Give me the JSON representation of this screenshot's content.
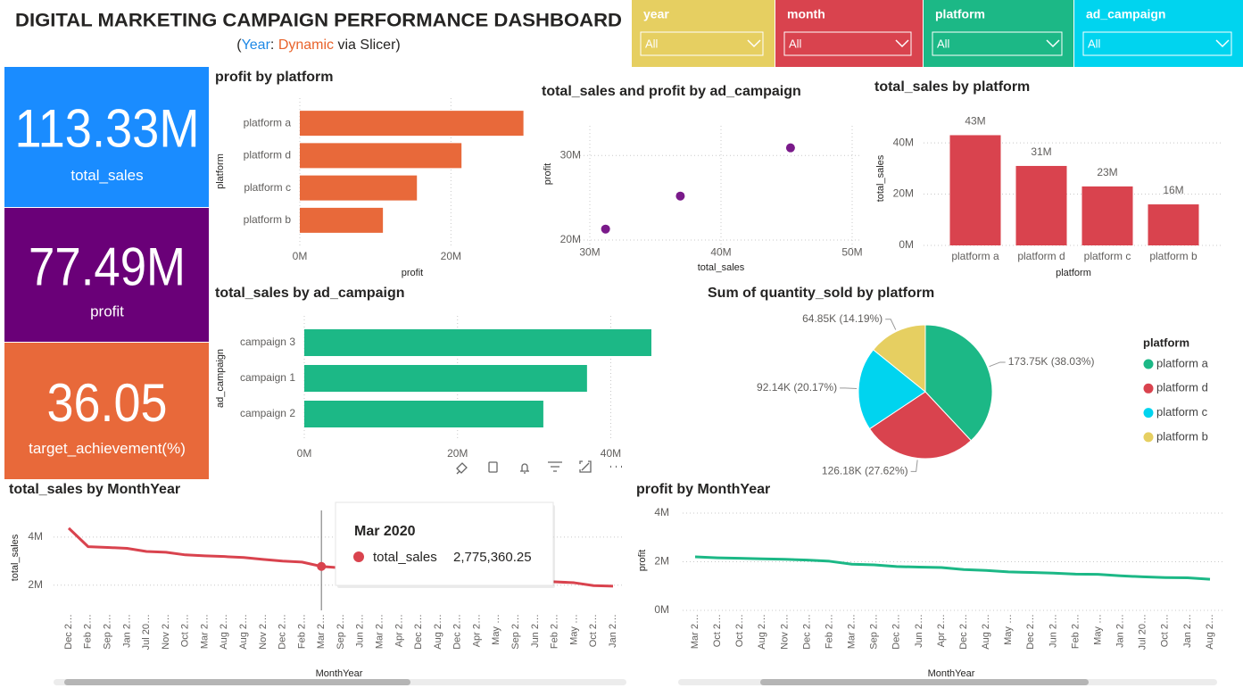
{
  "header": {
    "title": "DIGITAL MARKETING CAMPAIGN PERFORMANCE DASHBOARD",
    "subtitle_parts": [
      "(",
      "Year",
      ":",
      "Dynamic",
      "via Slicer)"
    ]
  },
  "slicers": [
    {
      "label": "year",
      "value": "All",
      "color": "#e6cf61"
    },
    {
      "label": "month",
      "value": "All",
      "color": "#d9434e"
    },
    {
      "label": "platform",
      "value": "All",
      "color": "#1cb886"
    },
    {
      "label": "ad_campaign",
      "value": "All",
      "color": "#00d4ef"
    }
  ],
  "kpis": [
    {
      "value": "113.33M",
      "label": "total_sales",
      "color": "#1a8cff"
    },
    {
      "value": "77.49M",
      "label": "profit",
      "color": "#6a0078"
    },
    {
      "value": "36.05",
      "label": "target_achievement(%)",
      "color": "#e8693a"
    }
  ],
  "chart_data": [
    {
      "type": "bar",
      "orientation": "horizontal",
      "title": "profit by platform",
      "x_label": "profit",
      "y_label": "platform",
      "categories": [
        "platform a",
        "platform d",
        "platform c",
        "platform b"
      ],
      "values": [
        29.6,
        21.4,
        15.5,
        11.0
      ],
      "color": "#e8693a",
      "xlim": [
        0,
        30
      ],
      "xticks": [
        {
          "value": 0,
          "label": "0M"
        },
        {
          "value": 20,
          "label": "20M"
        }
      ],
      "grid": true
    },
    {
      "type": "scatter",
      "title": "total_sales and profit by ad_campaign",
      "x_label": "total_sales",
      "y_label": "profit",
      "x": [
        31.2,
        36.9,
        45.3
      ],
      "values": [
        21.3,
        25.2,
        30.9
      ],
      "color": "#7a1a8a",
      "xlim": [
        30,
        50
      ],
      "xticks": [
        {
          "value": 30,
          "label": "30M"
        },
        {
          "value": 40,
          "label": "40M"
        },
        {
          "value": 50,
          "label": "50M"
        }
      ],
      "ylim": [
        19,
        33.5
      ],
      "yticks": [
        {
          "value": 20,
          "label": "20M"
        },
        {
          "value": 30,
          "label": "30M"
        }
      ],
      "grid": true
    },
    {
      "type": "bar",
      "orientation": "vertical",
      "title": "total_sales by platform",
      "x_label": "platform",
      "y_label": "total_sales",
      "categories": [
        "platform a",
        "platform d",
        "platform c",
        "platform b"
      ],
      "values": [
        43,
        31,
        23,
        16
      ],
      "value_labels": [
        "43M",
        "31M",
        "23M",
        "16M"
      ],
      "color": "#d9434e",
      "ylim": [
        0,
        47
      ],
      "yticks": [
        {
          "value": 0,
          "label": "0M"
        },
        {
          "value": 20,
          "label": "20M"
        },
        {
          "value": 40,
          "label": "40M"
        }
      ],
      "grid": true
    },
    {
      "type": "bar",
      "orientation": "horizontal",
      "title": "total_sales by ad_campaign",
      "y_label": "ad_campaign",
      "categories": [
        "campaign 3",
        "campaign 1",
        "campaign 2"
      ],
      "values": [
        45.3,
        36.9,
        31.2
      ],
      "color": "#1cb886",
      "xlim": [
        0,
        46
      ],
      "xticks": [
        {
          "value": 0,
          "label": "0M"
        },
        {
          "value": 20,
          "label": "20M"
        },
        {
          "value": 40,
          "label": "40M"
        }
      ],
      "grid": true
    },
    {
      "type": "pie",
      "title": "Sum of quantity_sold by platform",
      "legend_title": "platform",
      "categories": [
        "platform a",
        "platform d",
        "platform c",
        "platform b"
      ],
      "values": [
        173.75,
        126.18,
        92.14,
        64.85
      ],
      "value_labels": [
        "173.75K (38.03%)",
        "126.18K (27.62%)",
        "92.14K (20.17%)",
        "64.85K (14.19%)"
      ],
      "colors": [
        "#1cb886",
        "#d9434e",
        "#00d4ef",
        "#e6cf61"
      ],
      "legend": "right"
    },
    {
      "type": "line",
      "title": "total_sales by MonthYear",
      "x_label": "MonthYear",
      "y_label": "total_sales",
      "categories": [
        "Dec 2…",
        "Feb 2…",
        "Sep 2…",
        "Jan 2…",
        "Jul 20…",
        "Nov 2…",
        "Oct 2…",
        "Mar 2…",
        "Aug 2…",
        "Aug 2…",
        "Nov 2…",
        "Dec 2…",
        "Feb 2…",
        "Mar 2…",
        "Sep 2…",
        "Jun 2…",
        "Mar 2…",
        "Apr 2…",
        "Dec 2…",
        "Aug 2…",
        "Dec 2…",
        "Apr 2…",
        "May …",
        "Sep 2…",
        "Jun 2…",
        "Feb 2…",
        "May …",
        "Oct 2…",
        "Jan 2…"
      ],
      "values": [
        4.37,
        3.6,
        3.57,
        3.53,
        3.4,
        3.37,
        3.26,
        3.22,
        3.19,
        3.15,
        3.07,
        3.0,
        2.96,
        2.78,
        2.72,
        2.68,
        2.63,
        2.58,
        2.52,
        2.47,
        2.42,
        2.37,
        2.3,
        2.2,
        2.16,
        2.14,
        2.1,
        1.98,
        1.96
      ],
      "color": "#d9434e",
      "ylim": [
        1.1,
        4.7
      ],
      "yticks": [
        {
          "value": 2,
          "label": "2M"
        },
        {
          "value": 4,
          "label": "4M"
        }
      ],
      "grid": true,
      "tooltip": {
        "title": "Mar 2020",
        "name": "total_sales",
        "value": "2,775,360.25"
      }
    },
    {
      "type": "line",
      "title": "profit by MonthYear",
      "x_label": "MonthYear",
      "y_label": "profit",
      "categories": [
        "Mar 2…",
        "Oct 2…",
        "Oct 2…",
        "Aug 2…",
        "Nov 2…",
        "Dec 2…",
        "Feb 2…",
        "Mar 2…",
        "Sep 2…",
        "Dec 2…",
        "Jun 2…",
        "Apr 2…",
        "Dec 2…",
        "Aug 2…",
        "May …",
        "Dec 2…",
        "Jun 2…",
        "Feb 2…",
        "May …",
        "Jan 2…",
        "Jul 20…",
        "Oct 2…",
        "Jan 2…",
        "Aug 2…"
      ],
      "values": [
        2.2,
        2.16,
        2.14,
        2.12,
        2.1,
        2.07,
        2.02,
        1.9,
        1.87,
        1.8,
        1.78,
        1.76,
        1.68,
        1.64,
        1.58,
        1.56,
        1.53,
        1.49,
        1.48,
        1.42,
        1.38,
        1.35,
        1.34,
        1.28
      ],
      "color": "#1cb886",
      "ylim": [
        0,
        4.2
      ],
      "yticks": [
        {
          "value": 0,
          "label": "0M"
        },
        {
          "value": 2,
          "label": "2M"
        },
        {
          "value": 4,
          "label": "4M"
        }
      ],
      "grid": true
    }
  ]
}
